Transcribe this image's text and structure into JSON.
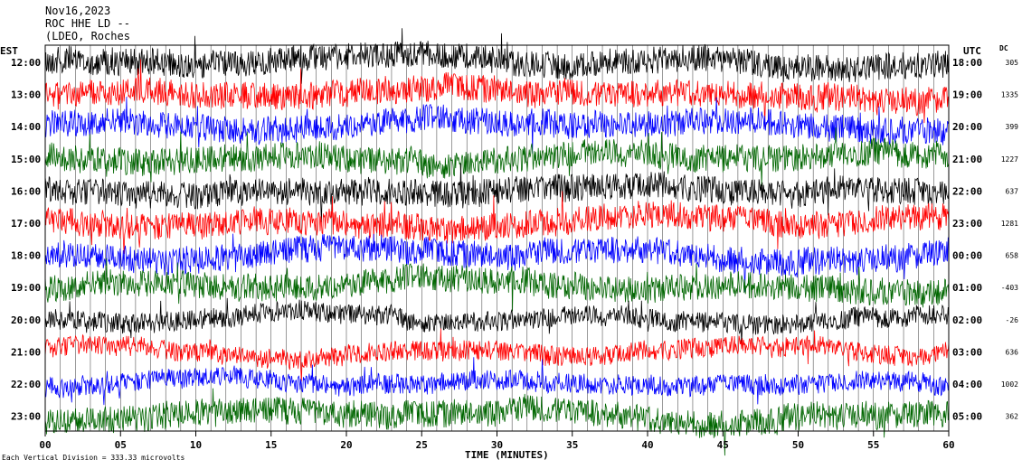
{
  "header": {
    "date": "Nov16,2023",
    "station": "ROC HHE LD --",
    "network": "(LDEO, Roches"
  },
  "left_tz": "EST",
  "right_tz": "UTC",
  "dc_label": "DC",
  "scale_note": "Each Vertical Division =  333.33 microvolts",
  "colors": {
    "black": "#000000",
    "red": "#ff0000",
    "blue": "#0000ff",
    "green": "#006600"
  },
  "chart_data": {
    "type": "line",
    "title": "",
    "xlabel": "TIME (MINUTES)",
    "ylabel": "",
    "xlim": [
      0,
      60
    ],
    "x_ticks": [
      0,
      5,
      10,
      15,
      20,
      25,
      30,
      35,
      40,
      45,
      50,
      55,
      60
    ],
    "x_tick_labels": [
      "00",
      "05",
      "10",
      "15",
      "20",
      "25",
      "30",
      "35",
      "40",
      "45",
      "50",
      "55",
      "60"
    ],
    "grid": "vertical lines every minute",
    "rows": [
      {
        "est": "12:00",
        "utc": "18:00",
        "dc": "305",
        "color": "black",
        "amplitude": "high"
      },
      {
        "est": "13:00",
        "utc": "19:00",
        "dc": "1335",
        "color": "red",
        "amplitude": "high"
      },
      {
        "est": "14:00",
        "utc": "20:00",
        "dc": "399",
        "color": "blue",
        "amplitude": "high"
      },
      {
        "est": "15:00",
        "utc": "21:00",
        "dc": "1227",
        "color": "green",
        "amplitude": "high"
      },
      {
        "est": "16:00",
        "utc": "22:00",
        "dc": "637",
        "color": "black",
        "amplitude": "high"
      },
      {
        "est": "17:00",
        "utc": "23:00",
        "dc": "1281",
        "color": "red",
        "amplitude": "high"
      },
      {
        "est": "18:00",
        "utc": "00:00",
        "dc": "658",
        "color": "blue",
        "amplitude": "high"
      },
      {
        "est": "19:00",
        "utc": "01:00",
        "dc": "-403",
        "color": "green",
        "amplitude": "high"
      },
      {
        "est": "20:00",
        "utc": "02:00",
        "dc": "-26",
        "color": "black",
        "amplitude": "medium"
      },
      {
        "est": "21:00",
        "utc": "03:00",
        "dc": "636",
        "color": "red",
        "amplitude": "medium"
      },
      {
        "est": "22:00",
        "utc": "04:00",
        "dc": "1002",
        "color": "blue",
        "amplitude": "medium"
      },
      {
        "est": "23:00",
        "utc": "05:00",
        "dc": "362",
        "color": "green",
        "amplitude": "high"
      }
    ]
  }
}
